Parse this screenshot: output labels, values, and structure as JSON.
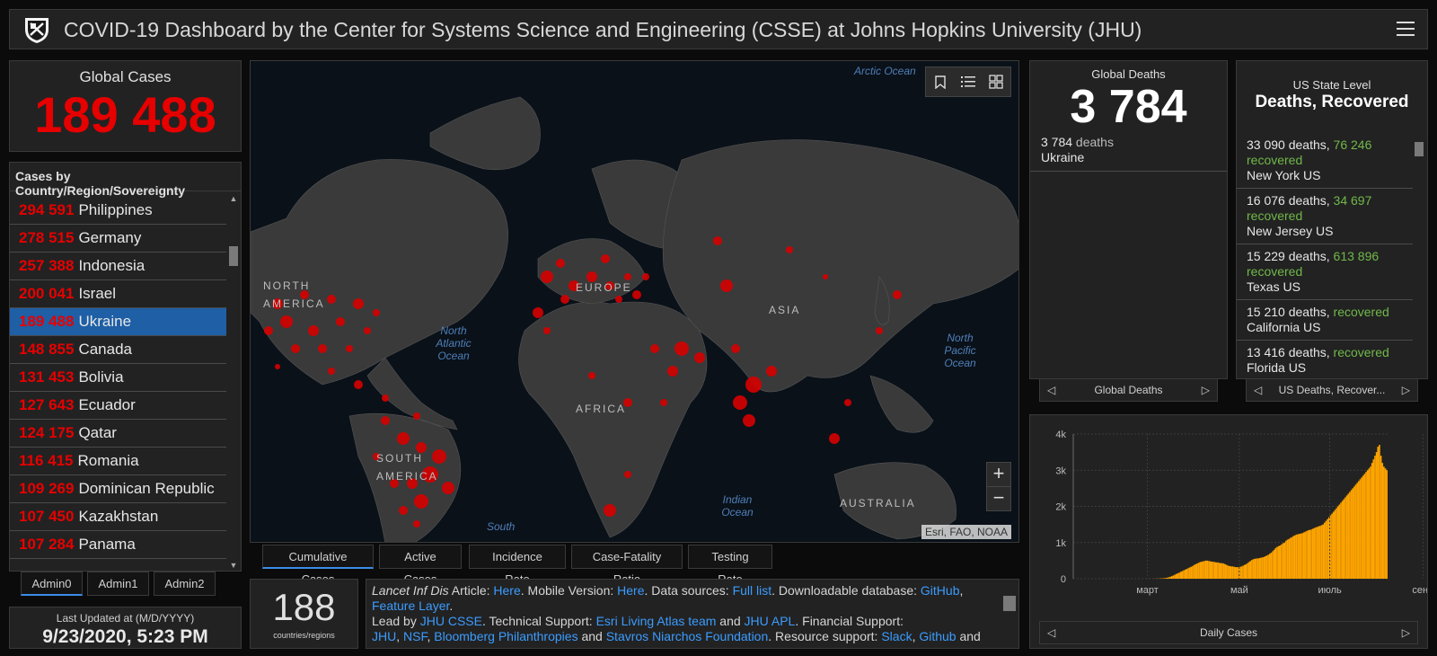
{
  "header": {
    "title": "COVID-19 Dashboard by the Center for Systems Science and Engineering (CSSE) at Johns Hopkins University (JHU)"
  },
  "global_cases": {
    "label": "Global Cases",
    "value": "189 488"
  },
  "country_list": {
    "header": "Cases by Country/Region/Sovereignty",
    "items": [
      {
        "count": "294 591",
        "name": "Philippines"
      },
      {
        "count": "278 515",
        "name": "Germany"
      },
      {
        "count": "257 388",
        "name": "Indonesia"
      },
      {
        "count": "200 041",
        "name": "Israel"
      },
      {
        "count": "189 488",
        "name": "Ukraine"
      },
      {
        "count": "148 855",
        "name": "Canada"
      },
      {
        "count": "131 453",
        "name": "Bolivia"
      },
      {
        "count": "127 643",
        "name": "Ecuador"
      },
      {
        "count": "124 175",
        "name": "Qatar"
      },
      {
        "count": "116 415",
        "name": "Romania"
      },
      {
        "count": "109 269",
        "name": "Dominican Republic"
      },
      {
        "count": "107 450",
        "name": "Kazakhstan"
      },
      {
        "count": "107 284",
        "name": "Panama"
      }
    ],
    "selected": "Ukraine"
  },
  "admin_tabs": [
    "Admin0",
    "Admin1",
    "Admin2"
  ],
  "last_updated": {
    "label": "Last Updated at (M/D/YYYY)",
    "value": "9/23/2020, 5:23 PM"
  },
  "map": {
    "attribution": "Esri, FAO, NOAA",
    "oceans": [
      "Arctic Ocean",
      "North Atlantic Ocean",
      "North Pacific Ocean",
      "Indian Ocean",
      "South"
    ],
    "continents": [
      "NORTH AMERICA",
      "EUROPE",
      "ASIA",
      "AFRICA",
      "SOUTH AMERICA",
      "AUSTRALIA"
    ],
    "zoom_in": "+",
    "zoom_out": "−"
  },
  "map_tabs": [
    "Cumulative Cases",
    "Active Cases",
    "Incidence Rate",
    "Case-Fatality Ratio",
    "Testing Rate"
  ],
  "countries_count": {
    "value": "188",
    "label": "countries/regions"
  },
  "info": {
    "lancet": "Lancet Inf Dis",
    "article_text": " Article: ",
    "here1": "Here",
    "mobile_text": ". Mobile Version: ",
    "here2": "Here",
    "sources_text": ". Data sources: ",
    "full_list": "Full list",
    "db_text": ". Downloadable database: ",
    "github": "GitHub",
    "comma": ", ",
    "feature_layer": "Feature Layer",
    "period": ".",
    "lead_text": "Lead by ",
    "jhu_csse": "JHU CSSE",
    "tech_text": ". Technical Support: ",
    "esri_team": "Esri Living Atlas team",
    "and1": " and ",
    "jhu_apl": "JHU APL",
    "fin_text": ". Financial Support:",
    "jhu": "JHU",
    "nsf": "NSF",
    "bloomberg": "Bloomberg Philanthropies",
    "and2": " and ",
    "stavros": "Stavros Niarchos Foundation",
    "res_text": ". Resource support: ",
    "slack": "Slack",
    "github2": "Github",
    "and3": " and"
  },
  "global_deaths": {
    "label": "Global Deaths",
    "value": "3 784",
    "detail_count": "3 784",
    "detail_unit": " deaths",
    "detail_place": "Ukraine",
    "nav_label": "Global Deaths"
  },
  "us_state": {
    "subtitle": "US State Level",
    "title": "Deaths, Recovered",
    "nav_label": "US Deaths, Recover...",
    "rows": [
      {
        "deaths": "33 090 deaths, ",
        "recovered_num": "76 246",
        "recovered_word": "recovered",
        "place": "New York",
        "country": "US"
      },
      {
        "deaths": "16 076 deaths, ",
        "recovered_num": "34 697",
        "recovered_word": "recovered",
        "place": "New Jersey",
        "country": "US"
      },
      {
        "deaths": "15 229 deaths, ",
        "recovered_num": "613 896",
        "recovered_word": "recovered",
        "place": "Texas",
        "country": "US"
      },
      {
        "deaths": "15 210 deaths, ",
        "recovered_num": "",
        "recovered_word": "recovered",
        "place": "California",
        "country": "US"
      },
      {
        "deaths": "13 416 deaths, ",
        "recovered_num": "",
        "recovered_word": "recovered",
        "place": "Florida",
        "country": "US"
      }
    ]
  },
  "colors": {
    "case_red": "#e60000",
    "recovered_green": "#70b84a",
    "bar_orange": "#ffa500",
    "link_blue": "#3b9cff",
    "selected_blue": "#1e5fa6"
  },
  "chart_data": {
    "type": "bar",
    "title": "",
    "xlabel": "",
    "ylabel": "",
    "nav_label": "Daily Cases",
    "ylim": [
      0,
      4000
    ],
    "y_ticks": [
      "0",
      "1k",
      "2k",
      "3k",
      "4k"
    ],
    "x_ticks": [
      "март",
      "май",
      "июль",
      "сент."
    ],
    "grid": true,
    "series": [
      {
        "values": [
          0,
          0,
          0,
          0,
          0,
          0,
          0,
          0,
          0,
          0,
          0,
          0,
          0,
          0,
          0,
          0,
          0,
          0,
          0,
          0,
          0,
          0,
          0,
          0,
          0,
          0,
          0,
          0,
          0,
          0,
          0,
          0,
          0,
          0,
          0,
          0,
          0,
          0,
          0,
          0,
          0,
          0,
          0,
          0,
          0,
          0,
          0,
          0,
          0,
          0,
          0,
          1,
          1,
          1,
          2,
          3,
          4,
          5,
          7,
          9,
          12,
          15,
          20,
          30,
          40,
          55,
          70,
          90,
          110,
          130,
          150,
          170,
          190,
          210,
          230,
          250,
          270,
          290,
          310,
          330,
          350,
          380,
          400,
          420,
          440,
          460,
          470,
          480,
          490,
          500,
          500,
          490,
          480,
          470,
          470,
          460,
          450,
          450,
          440,
          430,
          430,
          420,
          400,
          380,
          360,
          350,
          340,
          340,
          330,
          320,
          320,
          320,
          330,
          340,
          360,
          380,
          400,
          430,
          460,
          490,
          520,
          540,
          550,
          560,
          560,
          570,
          580,
          590,
          600,
          620,
          640,
          660,
          690,
          720,
          760,
          800,
          850,
          880,
          900,
          920,
          950,
          980,
          1000,
          1050,
          1080,
          1100,
          1130,
          1150,
          1180,
          1200,
          1220,
          1230,
          1240,
          1250,
          1260,
          1280,
          1300,
          1320,
          1340,
          1350,
          1360,
          1380,
          1400,
          1420,
          1430,
          1450,
          1460,
          1480,
          1500,
          1550,
          1600,
          1650,
          1700,
          1750,
          1800,
          1850,
          1900,
          1950,
          2000,
          2050,
          2100,
          2150,
          2200,
          2250,
          2300,
          2350,
          2400,
          2450,
          2500,
          2550,
          2600,
          2650,
          2700,
          2750,
          2800,
          2850,
          2900,
          2950,
          3000,
          3050,
          3100,
          3200,
          3300,
          3400,
          3500,
          3650,
          3700,
          3400,
          3200,
          3100,
          3050,
          3000
        ]
      }
    ]
  }
}
